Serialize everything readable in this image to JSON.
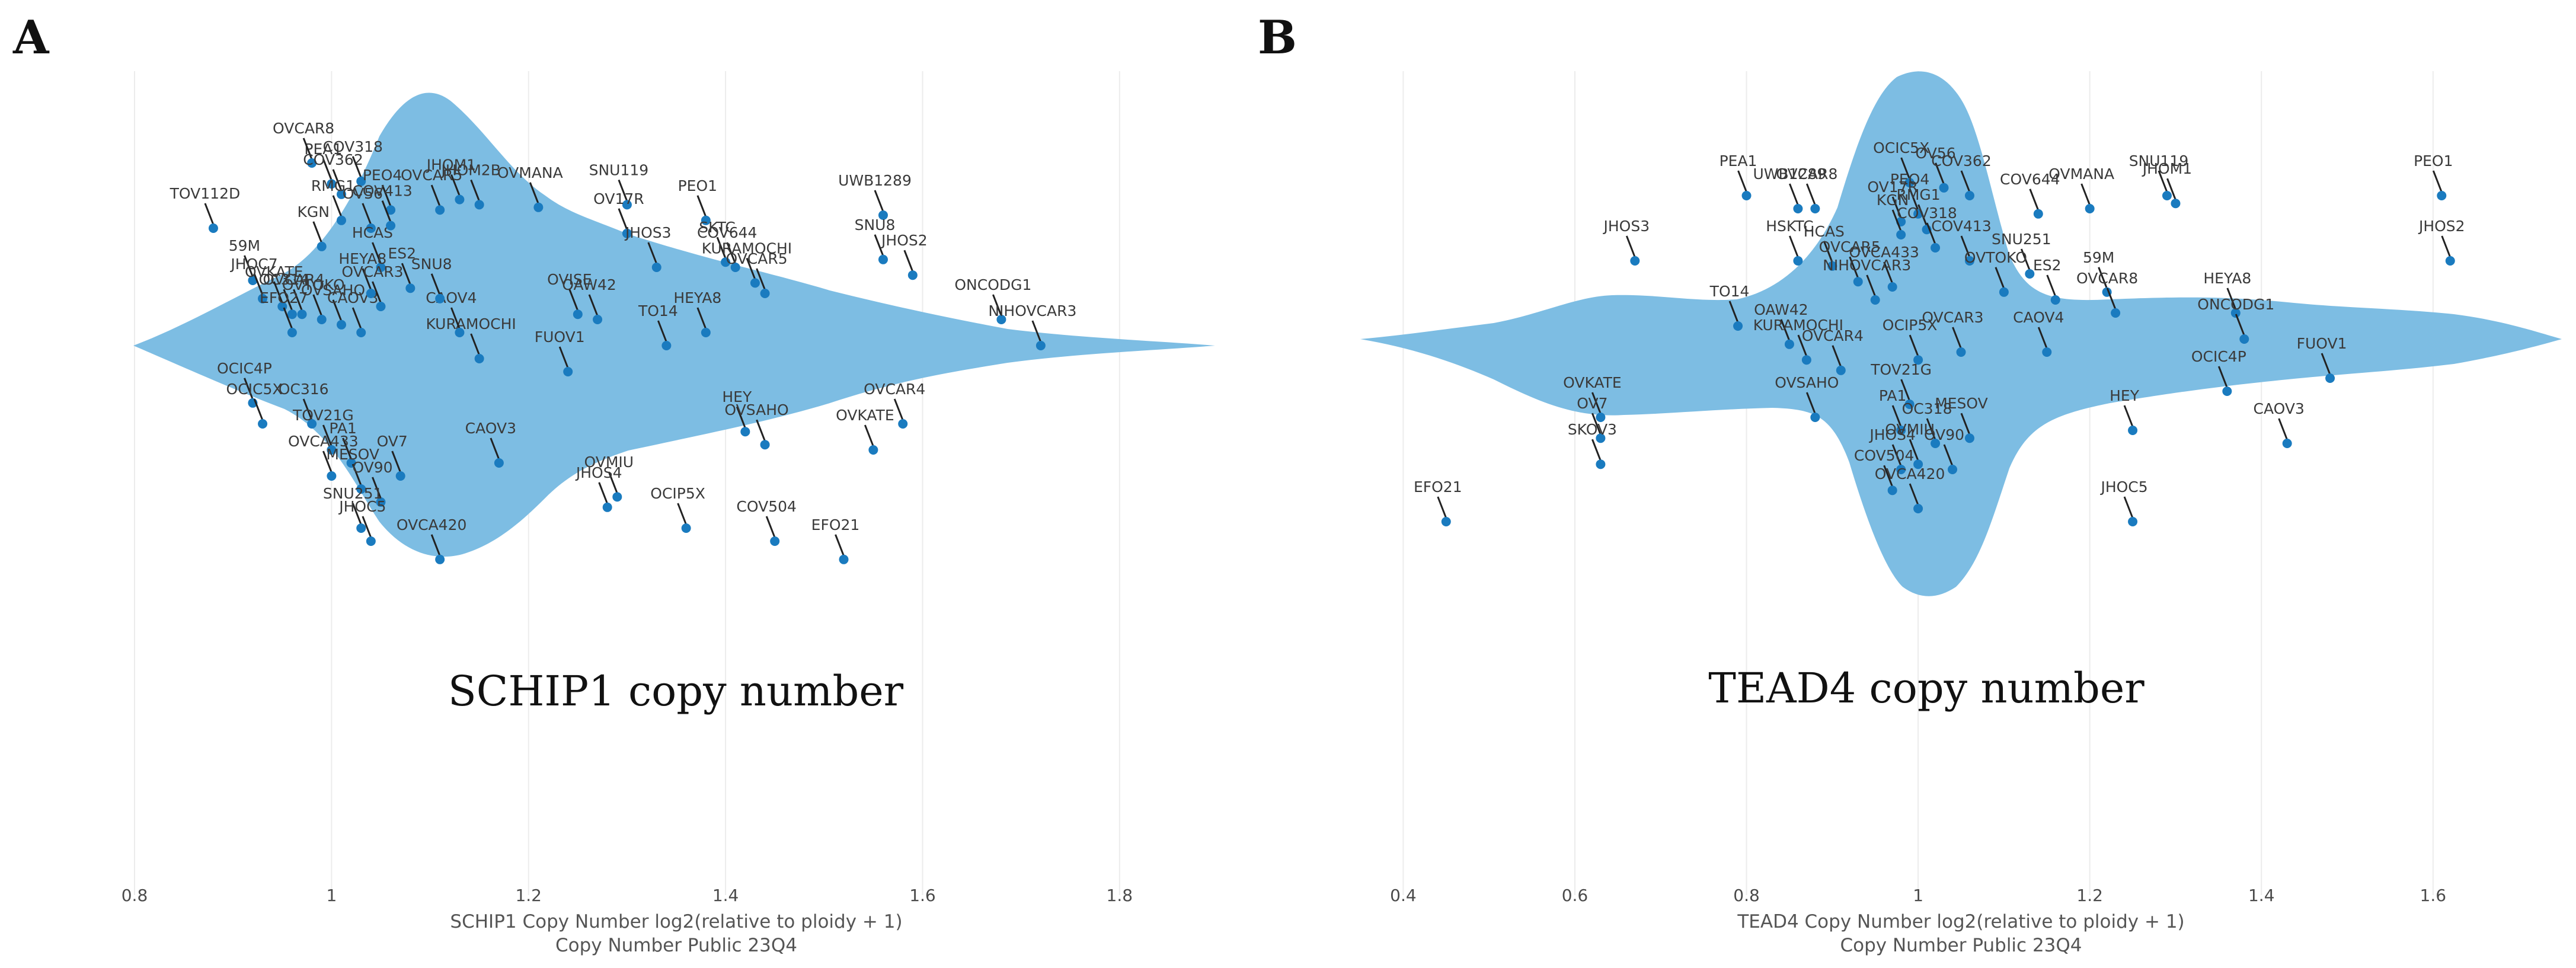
{
  "panel_letters": [
    "A",
    "B"
  ],
  "colors": {
    "violin": "#7dbde3",
    "point": "#1a7bbf",
    "grid": "#ececec"
  },
  "chart_data": [
    {
      "type": "scatter",
      "violin": true,
      "panel": "A",
      "caption": "SCHIP1 copy number",
      "xlabel": "SCHIP1 Copy Number log2(relative to ploidy + 1)",
      "xlabel2": "Copy Number Public 23Q4",
      "xlim": [
        0.8,
        1.9
      ],
      "xticks": [
        0.8,
        1,
        1.2,
        1.4,
        1.6,
        1.8
      ],
      "xtick_labels": [
        "0.8",
        "1",
        "1.2",
        "1.4",
        "1.6",
        "1.8"
      ],
      "points": [
        {
          "label": "TOV112D",
          "x": 0.88,
          "j": 0.45
        },
        {
          "label": "PEA1",
          "x": 1.0,
          "j": 0.62
        },
        {
          "label": "OVCAR8",
          "x": 0.98,
          "j": 0.7
        },
        {
          "label": "COV362",
          "x": 1.01,
          "j": 0.58
        },
        {
          "label": "COV318",
          "x": 1.03,
          "j": 0.63
        },
        {
          "label": "RMG1",
          "x": 1.01,
          "j": 0.48
        },
        {
          "label": "OV56",
          "x": 1.04,
          "j": 0.45
        },
        {
          "label": "KGN",
          "x": 0.99,
          "j": 0.38
        },
        {
          "label": "HCAS",
          "x": 1.05,
          "j": 0.3
        },
        {
          "label": "PEO4",
          "x": 1.06,
          "j": 0.52
        },
        {
          "label": "COV413",
          "x": 1.06,
          "j": 0.46
        },
        {
          "label": "JHOM1",
          "x": 1.13,
          "j": 0.56
        },
        {
          "label": "OVCAR5",
          "x": 1.11,
          "j": 0.52
        },
        {
          "label": "JHOM2B",
          "x": 1.15,
          "j": 0.54
        },
        {
          "label": "OVMANA",
          "x": 1.21,
          "j": 0.53
        },
        {
          "label": "SNU119",
          "x": 1.3,
          "j": 0.54
        },
        {
          "label": "OV17R",
          "x": 1.3,
          "j": 0.43
        },
        {
          "label": "PEO1",
          "x": 1.38,
          "j": 0.48
        },
        {
          "label": "UWB1289",
          "x": 1.56,
          "j": 0.5
        },
        {
          "label": "SNU8",
          "x": 1.56,
          "j": 0.33
        },
        {
          "label": "JHOS2",
          "x": 1.59,
          "j": 0.27
        },
        {
          "label": "JHOS3",
          "x": 1.33,
          "j": 0.3
        },
        {
          "label": "SKTC",
          "x": 1.4,
          "j": 0.32
        },
        {
          "label": "COV644",
          "x": 1.41,
          "j": 0.3
        },
        {
          "label": "KURAMOCHI",
          "x": 1.43,
          "j": 0.24
        },
        {
          "label": "OVCAR5",
          "x": 1.44,
          "j": 0.2
        },
        {
          "label": "HEYA8",
          "x": 1.38,
          "j": 0.05
        },
        {
          "label": "OVISE",
          "x": 1.25,
          "j": 0.12
        },
        {
          "label": "TO14",
          "x": 1.34,
          "j": 0.0
        },
        {
          "label": "OAW42",
          "x": 1.27,
          "j": 0.1
        },
        {
          "label": "FUOV1",
          "x": 1.24,
          "j": -0.1
        },
        {
          "label": "KURAMOCHI",
          "x": 1.15,
          "j": -0.05
        },
        {
          "label": "CAOV4",
          "x": 1.13,
          "j": 0.05
        },
        {
          "label": "SNU8",
          "x": 1.11,
          "j": 0.18
        },
        {
          "label": "ES2",
          "x": 1.08,
          "j": 0.22
        },
        {
          "label": "OC314",
          "x": 0.96,
          "j": 0.12
        },
        {
          "label": "59M",
          "x": 0.92,
          "j": 0.25
        },
        {
          "label": "JHOC7",
          "x": 0.93,
          "j": 0.18
        },
        {
          "label": "OVKATE",
          "x": 0.95,
          "j": 0.15
        },
        {
          "label": "OVCAR4",
          "x": 0.97,
          "j": 0.12
        },
        {
          "label": "OVTOKO",
          "x": 0.99,
          "j": 0.1
        },
        {
          "label": "OVSAHO",
          "x": 1.01,
          "j": 0.08
        },
        {
          "label": "CAOV3",
          "x": 1.03,
          "j": 0.05
        },
        {
          "label": "HEYA8",
          "x": 1.04,
          "j": 0.2
        },
        {
          "label": "OVCAR3",
          "x": 1.05,
          "j": 0.15
        },
        {
          "label": "EFO27",
          "x": 0.96,
          "j": 0.05
        },
        {
          "label": "ONCODG1",
          "x": 1.68,
          "j": 0.1
        },
        {
          "label": "NIHOVCAR3",
          "x": 1.72,
          "j": 0.0
        },
        {
          "label": "OVCAR4",
          "x": 1.58,
          "j": -0.3
        },
        {
          "label": "OVKATE",
          "x": 1.55,
          "j": -0.4
        },
        {
          "label": "HEY",
          "x": 1.42,
          "j": -0.33
        },
        {
          "label": "OVSAHO",
          "x": 1.44,
          "j": -0.38
        },
        {
          "label": "OCIC4P",
          "x": 0.92,
          "j": -0.22
        },
        {
          "label": "OCIC5X",
          "x": 0.93,
          "j": -0.3
        },
        {
          "label": "OC316",
          "x": 0.98,
          "j": -0.3
        },
        {
          "label": "TOV21G",
          "x": 1.0,
          "j": -0.4
        },
        {
          "label": "PA1",
          "x": 1.02,
          "j": -0.45
        },
        {
          "label": "OV7",
          "x": 1.07,
          "j": -0.5
        },
        {
          "label": "OVCA433",
          "x": 1.0,
          "j": -0.5
        },
        {
          "label": "MESOV",
          "x": 1.03,
          "j": -0.55
        },
        {
          "label": "OV90",
          "x": 1.05,
          "j": -0.6
        },
        {
          "label": "CAOV3",
          "x": 1.17,
          "j": -0.45
        },
        {
          "label": "SNU251",
          "x": 1.03,
          "j": -0.7
        },
        {
          "label": "JHOC5",
          "x": 1.04,
          "j": -0.75
        },
        {
          "label": "OVCA420",
          "x": 1.11,
          "j": -0.82
        },
        {
          "label": "OVMIU",
          "x": 1.29,
          "j": -0.58
        },
        {
          "label": "JHOS4",
          "x": 1.28,
          "j": -0.62
        },
        {
          "label": "OCIP5X",
          "x": 1.36,
          "j": -0.7
        },
        {
          "label": "COV504",
          "x": 1.45,
          "j": -0.75
        },
        {
          "label": "EFO21",
          "x": 1.52,
          "j": -0.82
        }
      ]
    },
    {
      "type": "scatter",
      "violin": true,
      "panel": "B",
      "caption": "TEAD4 copy number",
      "xlabel": "TEAD4 Copy Number log2(relative to ploidy + 1)",
      "xlabel2": "Copy Number Public 23Q4",
      "xlim": [
        0.35,
        1.75
      ],
      "xticks": [
        0.4,
        0.6,
        0.8,
        1,
        1.2,
        1.4,
        1.6
      ],
      "xtick_labels": [
        "0.4",
        "0.6",
        "0.8",
        "1",
        "1.2",
        "1.4",
        "1.6"
      ],
      "points": [
        {
          "label": "PEA1",
          "x": 0.8,
          "j": 0.55
        },
        {
          "label": "UWB1289",
          "x": 0.86,
          "j": 0.5
        },
        {
          "label": "OVCAR8",
          "x": 0.88,
          "j": 0.5
        },
        {
          "label": "OCIC5X",
          "x": 0.99,
          "j": 0.6
        },
        {
          "label": "OV56",
          "x": 1.03,
          "j": 0.58
        },
        {
          "label": "COV362",
          "x": 1.06,
          "j": 0.55
        },
        {
          "label": "PEO4",
          "x": 1.0,
          "j": 0.48
        },
        {
          "label": "OV17R",
          "x": 0.98,
          "j": 0.45
        },
        {
          "label": "KGN",
          "x": 0.98,
          "j": 0.4
        },
        {
          "label": "RMG1",
          "x": 1.01,
          "j": 0.42
        },
        {
          "label": "COV644",
          "x": 1.14,
          "j": 0.48
        },
        {
          "label": "OVMANA",
          "x": 1.2,
          "j": 0.5
        },
        {
          "label": "SNU119",
          "x": 1.29,
          "j": 0.55
        },
        {
          "label": "JHOM1",
          "x": 1.3,
          "j": 0.52
        },
        {
          "label": "PEO1",
          "x": 1.61,
          "j": 0.55
        },
        {
          "label": "JHOS2",
          "x": 1.62,
          "j": 0.3
        },
        {
          "label": "JHOS3",
          "x": 0.67,
          "j": 0.3
        },
        {
          "label": "HSKTC",
          "x": 0.86,
          "j": 0.3
        },
        {
          "label": "HCAS",
          "x": 0.9,
          "j": 0.28
        },
        {
          "label": "OVCAR5",
          "x": 0.93,
          "j": 0.22
        },
        {
          "label": "COV318",
          "x": 1.02,
          "j": 0.35
        },
        {
          "label": "COV413",
          "x": 1.06,
          "j": 0.3
        },
        {
          "label": "SNU251",
          "x": 1.13,
          "j": 0.25
        },
        {
          "label": "OVTOKO",
          "x": 1.1,
          "j": 0.18
        },
        {
          "label": "OVCA433",
          "x": 0.97,
          "j": 0.2
        },
        {
          "label": "NIHOVCAR3",
          "x": 0.95,
          "j": 0.15
        },
        {
          "label": "ES2",
          "x": 1.16,
          "j": 0.15
        },
        {
          "label": "59M",
          "x": 1.22,
          "j": 0.18
        },
        {
          "label": "OVCAR8",
          "x": 1.23,
          "j": 0.1
        },
        {
          "label": "HEYA8",
          "x": 1.37,
          "j": 0.1
        },
        {
          "label": "ONCODG1",
          "x": 1.38,
          "j": 0.0
        },
        {
          "label": "OCIC4P",
          "x": 1.36,
          "j": -0.2
        },
        {
          "label": "FUOV1",
          "x": 1.48,
          "j": -0.15
        },
        {
          "label": "CAOV3",
          "x": 1.43,
          "j": -0.4
        },
        {
          "label": "CAOV4",
          "x": 1.15,
          "j": -0.05
        },
        {
          "label": "OVCAR3",
          "x": 1.05,
          "j": -0.05
        },
        {
          "label": "TO14",
          "x": 0.79,
          "j": 0.05
        },
        {
          "label": "OAW42",
          "x": 0.85,
          "j": -0.02
        },
        {
          "label": "KURAMOCHI",
          "x": 0.87,
          "j": -0.08
        },
        {
          "label": "OVCAR4",
          "x": 0.91,
          "j": -0.12
        },
        {
          "label": "OCIP5X",
          "x": 1.0,
          "j": -0.08
        },
        {
          "label": "OVSAHO",
          "x": 0.88,
          "j": -0.3
        },
        {
          "label": "OVKATE",
          "x": 0.63,
          "j": -0.3
        },
        {
          "label": "OV7",
          "x": 0.63,
          "j": -0.38
        },
        {
          "label": "SKOV3",
          "x": 0.63,
          "j": -0.48
        },
        {
          "label": "EFO21",
          "x": 0.45,
          "j": -0.7
        },
        {
          "label": "TOV21G",
          "x": 0.99,
          "j": -0.25
        },
        {
          "label": "PA1",
          "x": 0.98,
          "j": -0.35
        },
        {
          "label": "OC318",
          "x": 1.02,
          "j": -0.4
        },
        {
          "label": "OVMIU",
          "x": 1.0,
          "j": -0.48
        },
        {
          "label": "JHOS4",
          "x": 0.98,
          "j": -0.5
        },
        {
          "label": "COV504",
          "x": 0.97,
          "j": -0.58
        },
        {
          "label": "OVCA420",
          "x": 1.0,
          "j": -0.65
        },
        {
          "label": "MESOV",
          "x": 1.06,
          "j": -0.38
        },
        {
          "label": "OV90",
          "x": 1.04,
          "j": -0.5
        },
        {
          "label": "HEY",
          "x": 1.25,
          "j": -0.35
        },
        {
          "label": "JHOC5",
          "x": 1.25,
          "j": -0.7
        }
      ]
    }
  ]
}
